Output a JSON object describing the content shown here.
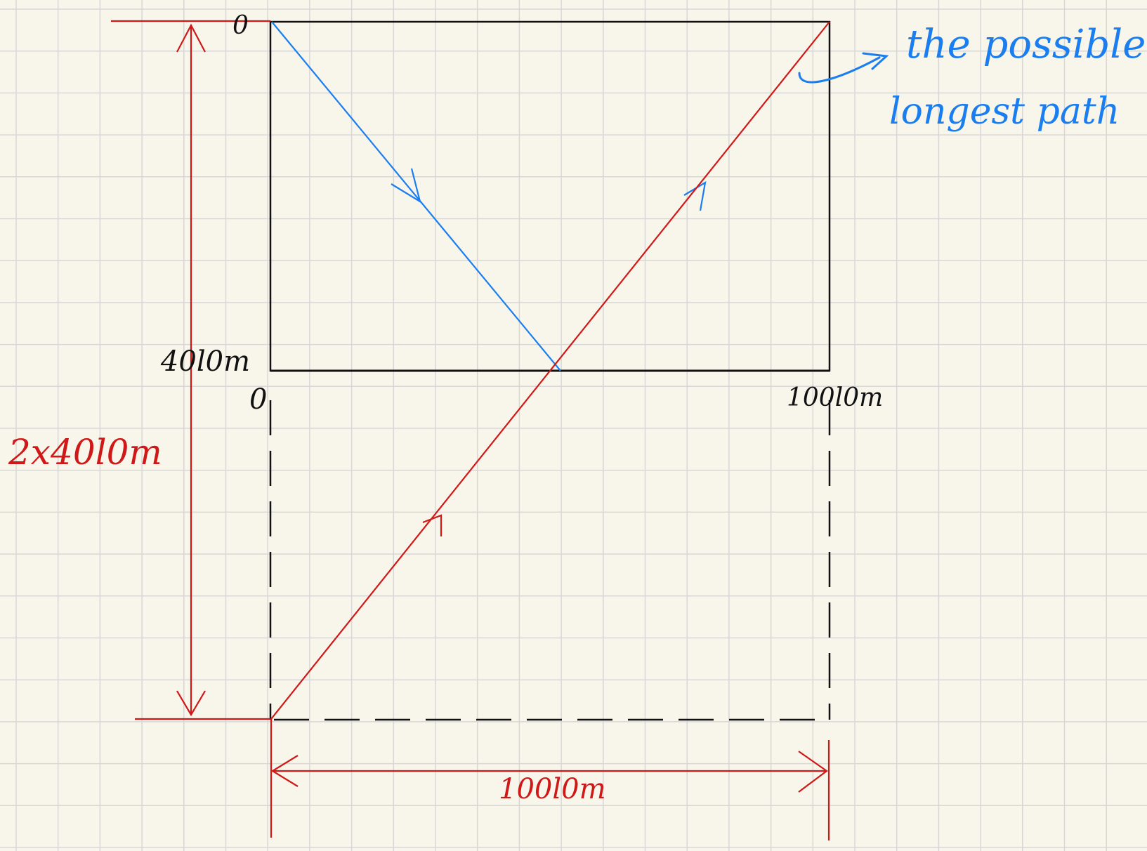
{
  "colors": {
    "paper": "#f8f6ea",
    "grid": "#d7d7d7",
    "box": "#111111",
    "red": "#d01818",
    "blue": "#1b7ef0"
  },
  "labels": {
    "top_zero": "0",
    "origin_zero": "0",
    "pool_length": "40l0m",
    "pool_width": "100l0m",
    "double_length": "2x40l0m",
    "width_dimension": "100l0m",
    "annotation_line1": "the possible",
    "annotation_line2": "longest path"
  }
}
